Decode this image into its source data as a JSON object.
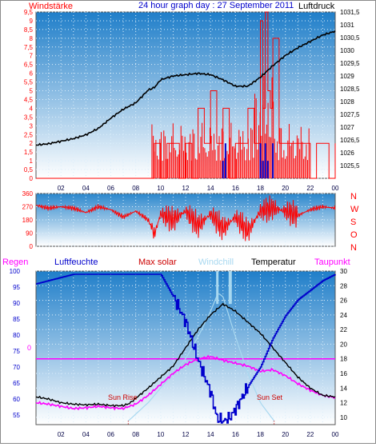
{
  "header": {
    "left_label": "Windstärke",
    "title": "24 hour graph day : 27 September 2011",
    "right_label": "Luftdruck"
  },
  "colors": {
    "red": "#ff0000",
    "navy": "#0000cc",
    "magenta": "#ff00ff",
    "lightblue": "#a8d8f0",
    "black": "#000000",
    "grad_top": "#1f7ec9",
    "grad_bottom": "#ffffff"
  },
  "bottom_panel_labels": {
    "regen": "Regen",
    "luftfeuchte": "Luftfeuchte",
    "max_solar": "Max solar",
    "windchill": "Windchill",
    "temperatur": "Temperatur",
    "taupunkt": "Taupunkt",
    "regen_value": "0",
    "sun_rise": "Sun Rise",
    "sun_set": "Sun Set"
  },
  "direction_letters": [
    "N",
    "W",
    "S",
    "O",
    "N"
  ],
  "chart_data": [
    {
      "type": "line",
      "panel": "wind-pressure",
      "x_ticks": [
        "02",
        "04",
        "06",
        "08",
        "10",
        "12",
        "14",
        "16",
        "18",
        "20",
        "22",
        "00"
      ],
      "xlim": [
        0,
        24
      ],
      "left_axis": {
        "label": "Windstärke",
        "ylim": [
          0,
          9.5
        ],
        "ticks": [
          "0",
          "0,5",
          "1",
          "1,5",
          "2",
          "2,5",
          "3",
          "3,5",
          "4",
          "4,5",
          "5",
          "5,5",
          "6",
          "6,5",
          "7",
          "7,5",
          "8",
          "8,5",
          "9",
          "9,5"
        ]
      },
      "right_axis": {
        "label": "Luftdruck",
        "ylim": [
          1025,
          1031.5
        ],
        "ticks": [
          "1025,5",
          "1026",
          "1026,5",
          "1027",
          "1027,5",
          "1028",
          "1028,5",
          "1029",
          "1029,5",
          "1030",
          "1030,5",
          "1031",
          "1031,5"
        ]
      },
      "series": [
        {
          "name": "Luftdruck",
          "axis": "right",
          "x": [
            0,
            1,
            2,
            3,
            4,
            5,
            6,
            7,
            8,
            9,
            9.5,
            10,
            11,
            12,
            13,
            14,
            15,
            16,
            17,
            18,
            19,
            20,
            21,
            22,
            23,
            24
          ],
          "values": [
            1026.3,
            1026.35,
            1026.45,
            1026.55,
            1026.7,
            1026.95,
            1027.35,
            1027.7,
            1027.95,
            1028.45,
            1028.55,
            1028.85,
            1029.0,
            1029.05,
            1029.1,
            1029.05,
            1028.85,
            1028.6,
            1028.6,
            1028.95,
            1029.4,
            1029.8,
            1030.1,
            1030.35,
            1030.6,
            1030.75
          ]
        },
        {
          "name": "Windböen",
          "axis": "left",
          "x": [
            0,
            9,
            9.5,
            10,
            10.5,
            11,
            11.5,
            12,
            12.5,
            13,
            13.5,
            14,
            14.5,
            15,
            15.5,
            16,
            16.5,
            17,
            17.5,
            18,
            18.2,
            18.4,
            18.6,
            18.8,
            19,
            19.5,
            20,
            20.5,
            21,
            21.5,
            22,
            22.5,
            23,
            23.5,
            24
          ],
          "values": [
            0,
            0,
            2,
            0,
            2,
            2,
            0,
            2,
            0,
            4,
            2,
            5,
            2,
            4,
            0,
            2,
            2,
            4,
            2,
            9,
            4,
            9.5,
            5,
            4,
            8,
            2,
            2,
            2,
            2,
            2,
            0,
            2,
            2,
            0,
            2
          ]
        },
        {
          "name": "Windgeschwindigkeit",
          "axis": "left",
          "x": [
            15,
            15.2,
            18,
            18.2,
            18.4,
            18.6,
            19
          ],
          "values": [
            1,
            2,
            2,
            1,
            2,
            1,
            2
          ]
        }
      ]
    },
    {
      "type": "line",
      "panel": "wind-direction",
      "xlim": [
        0,
        24
      ],
      "ylim": [
        0,
        360
      ],
      "y_ticks": [
        "0",
        "90",
        "180",
        "270",
        "360"
      ],
      "direction_letters": [
        "N",
        "W",
        "S",
        "O",
        "N"
      ],
      "series": [
        {
          "name": "Windrichtung",
          "x": [
            0,
            1,
            2,
            3,
            4,
            5,
            6,
            7,
            8,
            9,
            9.5,
            10,
            11,
            12,
            13,
            14,
            15,
            16,
            17,
            18,
            19,
            20,
            21,
            22,
            23,
            24
          ],
          "values": [
            280,
            260,
            270,
            260,
            230,
            270,
            250,
            200,
            240,
            180,
            80,
            220,
            180,
            240,
            140,
            220,
            120,
            200,
            100,
            240,
            260,
            240,
            210,
            250,
            270,
            260
          ]
        }
      ]
    },
    {
      "type": "line",
      "panel": "temperature-humidity",
      "xlim": [
        0,
        24
      ],
      "x_ticks": [
        "02",
        "04",
        "06",
        "08",
        "10",
        "12",
        "14",
        "16",
        "18",
        "20",
        "22",
        "00"
      ],
      "left_axis": {
        "label": "Luftfeuchte",
        "ylim": [
          52,
          100
        ],
        "ticks": [
          "55",
          "60",
          "65",
          "70",
          "75",
          "80",
          "85",
          "90",
          "95",
          "100"
        ]
      },
      "right_axis": {
        "label": "Temperatur",
        "ylim": [
          9,
          30
        ],
        "ticks": [
          "10",
          "12",
          "14",
          "16",
          "18",
          "20",
          "22",
          "24",
          "26",
          "28",
          "30"
        ]
      },
      "series": [
        {
          "name": "Luftfeuchte",
          "axis": "left",
          "x": [
            0,
            1,
            2,
            3,
            4,
            5,
            6,
            7,
            8,
            9,
            10,
            11,
            12,
            13,
            14,
            14.5,
            15,
            15.5,
            16,
            17,
            18,
            19,
            20,
            21,
            22,
            23,
            24
          ],
          "values": [
            96,
            97,
            98,
            99,
            99,
            99,
            99,
            99,
            99,
            99,
            99,
            92,
            84,
            72,
            62,
            54,
            53,
            54,
            57,
            64,
            70,
            79,
            86,
            91,
            94,
            97,
            99
          ]
        },
        {
          "name": "Temperatur",
          "axis": "right",
          "x": [
            0,
            1,
            2,
            3,
            4,
            5,
            6,
            7,
            7.5,
            8,
            9,
            10,
            11,
            12,
            13,
            14,
            15,
            16,
            17,
            18,
            19,
            20,
            21,
            22,
            23,
            24
          ],
          "values": [
            12.8,
            12.5,
            12.0,
            11.8,
            11.7,
            11.8,
            11.6,
            11.6,
            11.9,
            12.6,
            14.0,
            15.5,
            17.0,
            19.5,
            22.0,
            24.0,
            25.5,
            24.5,
            23.0,
            21.5,
            19.5,
            17.5,
            15.5,
            14.0,
            13.0,
            12.8
          ]
        },
        {
          "name": "Taupunkt",
          "axis": "right",
          "x": [
            0,
            1,
            2,
            3,
            4,
            5,
            6,
            7,
            8,
            9,
            10,
            11,
            12,
            13,
            14,
            15,
            16,
            17,
            18,
            19,
            20,
            21,
            22,
            23,
            24
          ],
          "values": [
            12.0,
            11.8,
            11.5,
            11.2,
            11.3,
            11.5,
            11.3,
            11.2,
            11.8,
            13.0,
            14.5,
            16.0,
            17.2,
            18.0,
            18.3,
            17.8,
            17.4,
            17.0,
            16.3,
            16.5,
            15.7,
            14.6,
            13.7,
            13.0,
            12.7
          ]
        },
        {
          "name": "Max solar",
          "axis": "right",
          "x": [
            7.4,
            9,
            10,
            11,
            12,
            13,
            14,
            14.6,
            15,
            16,
            17,
            18,
            19.1
          ],
          "values": [
            9.5,
            12.0,
            14.0,
            16.0,
            18.0,
            21.0,
            24.5,
            27.0,
            26.5,
            21.0,
            16.0,
            12.0,
            9.5
          ]
        },
        {
          "name": "Windchill",
          "axis": "right",
          "x": [
            14.5,
            14.5,
            15.5,
            15.5
          ],
          "values": [
            25,
            30,
            25,
            30
          ]
        },
        {
          "name": "Regen",
          "axis": "right",
          "x": [
            0,
            24
          ],
          "values": [
            18,
            18
          ]
        }
      ]
    }
  ]
}
